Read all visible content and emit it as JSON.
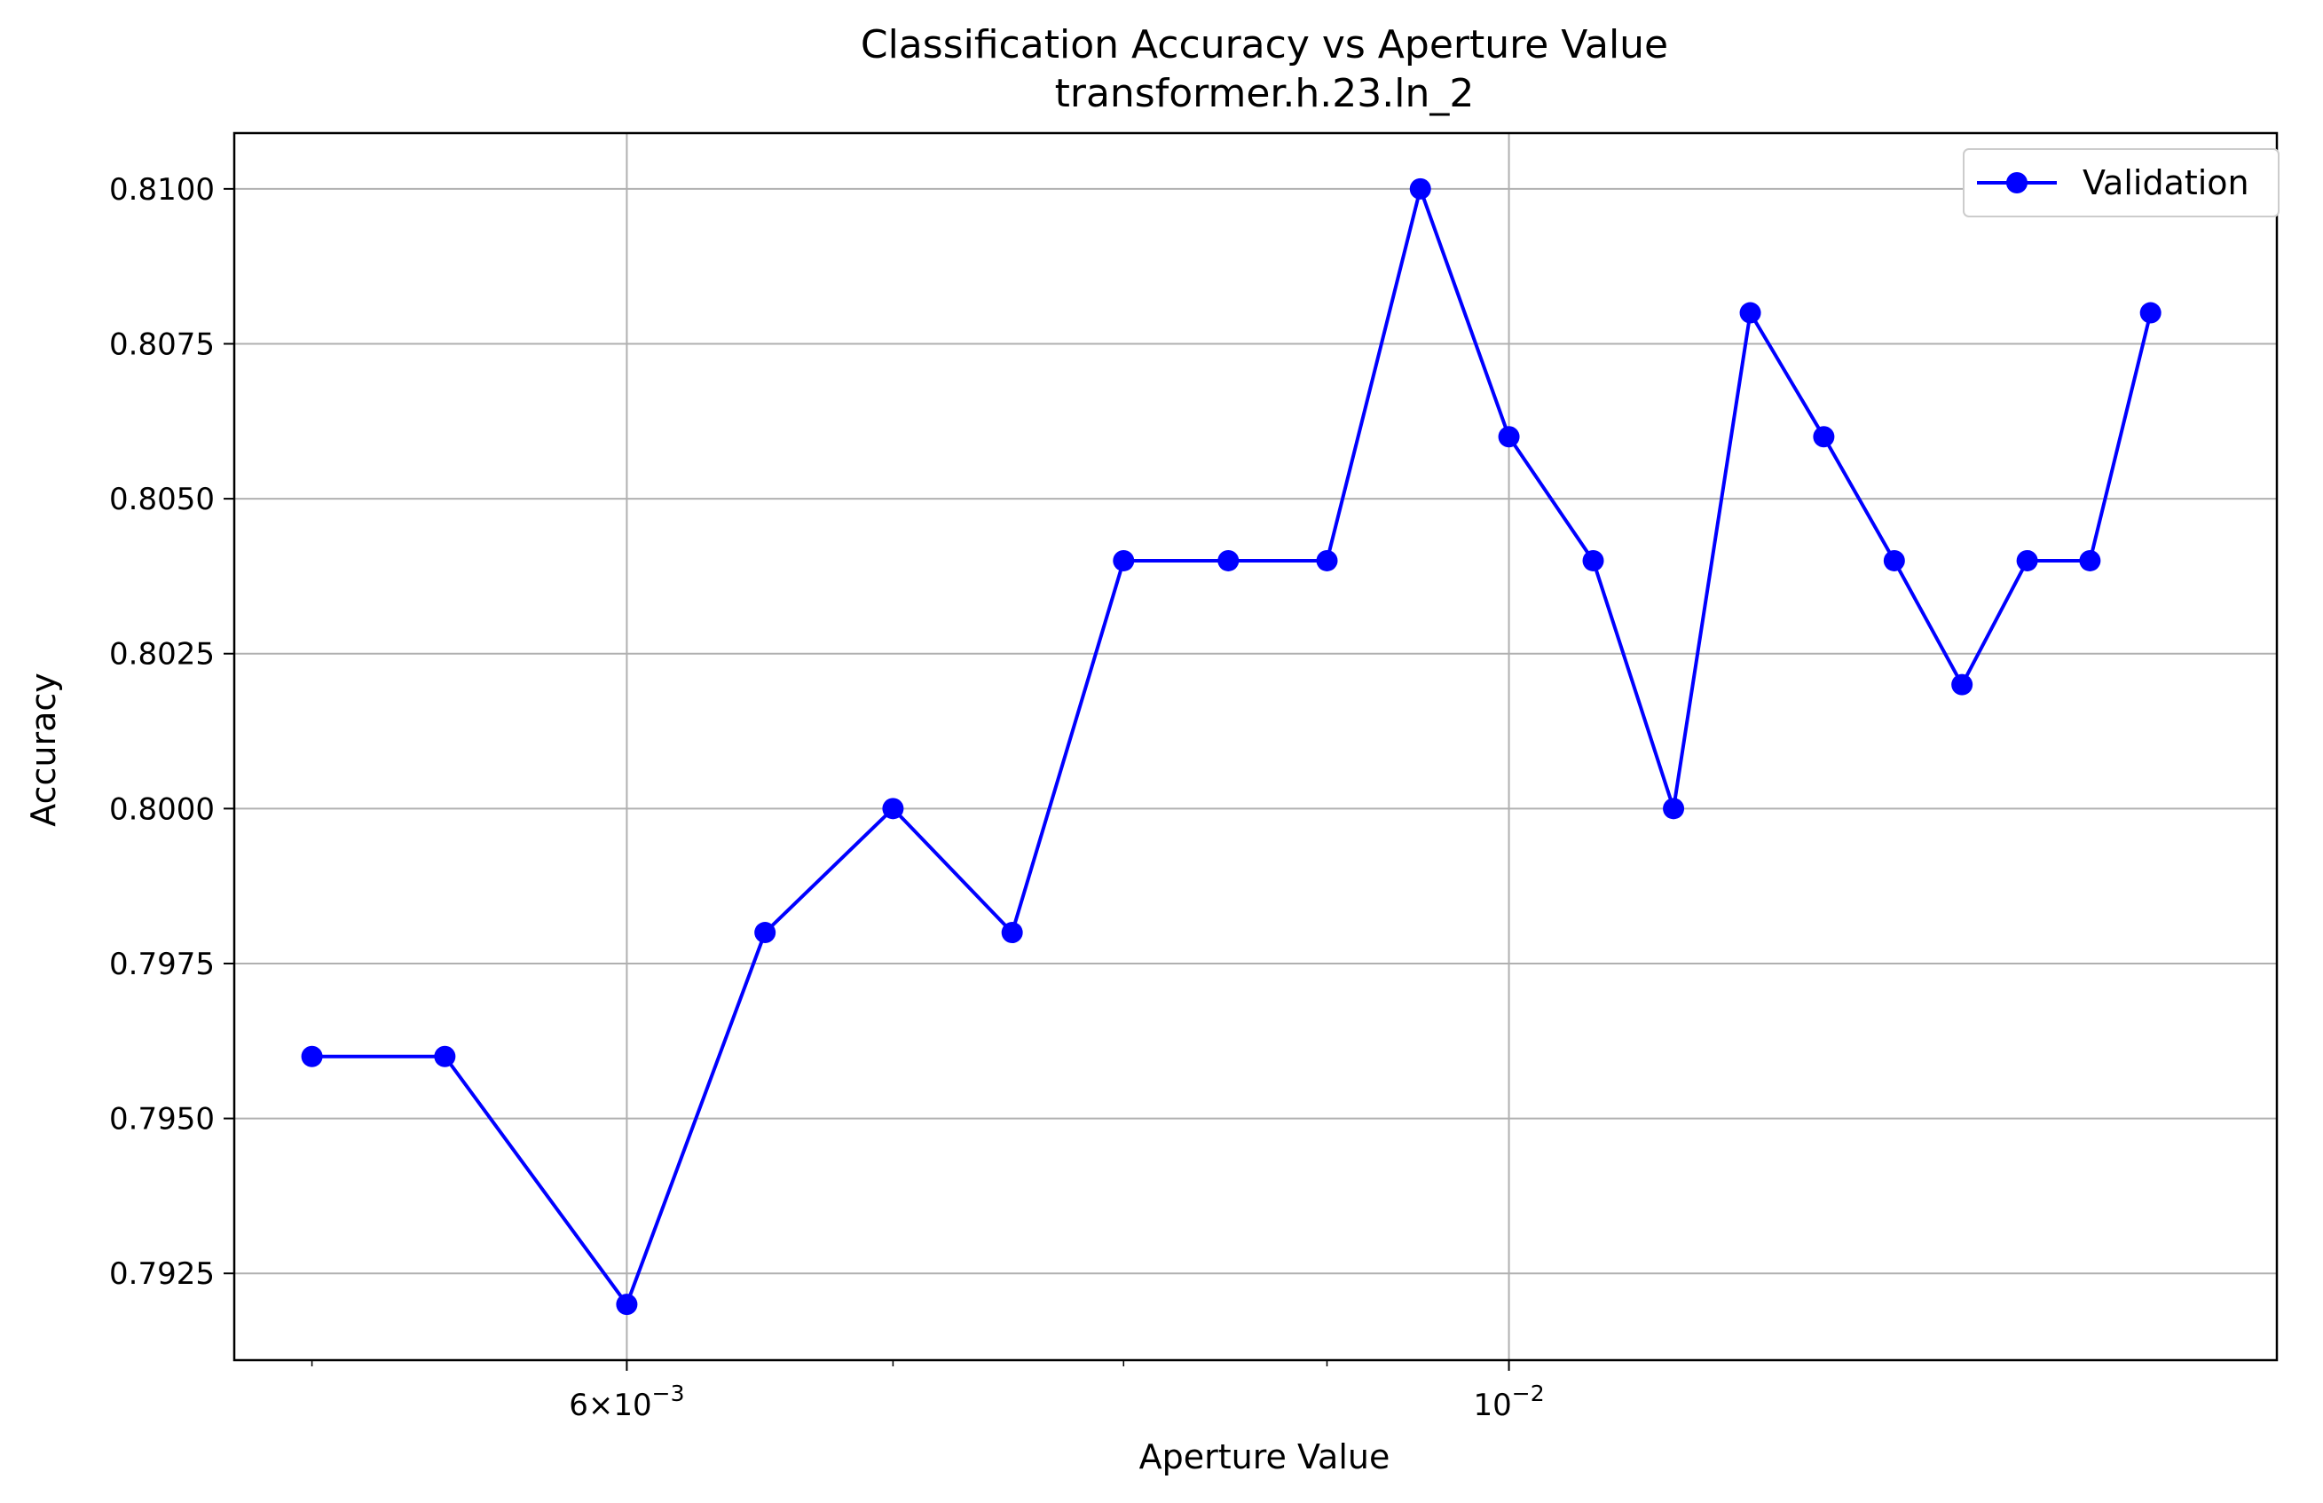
{
  "chart_data": {
    "type": "line",
    "title": "Classification Accuracy vs Aperture Value",
    "subtitle": "transformer.h.23.ln_2",
    "xlabel": "Aperture Value",
    "ylabel": "Accuracy",
    "xscale": "log",
    "xlim": [
      0.00478,
      0.0156
    ],
    "ylim": [
      0.7911,
      0.8109
    ],
    "grid": true,
    "legend_position": "upper-right",
    "x_major_ticks": [
      {
        "value": 0.006,
        "mantissa": "6",
        "base": "10",
        "exponent": "−3"
      },
      {
        "value": 0.01,
        "mantissa": "",
        "base": "10",
        "exponent": "−2"
      }
    ],
    "x_minor_ticks": [
      0.005,
      0.007,
      0.008,
      0.009
    ],
    "y_ticks": [
      {
        "value": 0.7925,
        "label": "0.7925"
      },
      {
        "value": 0.795,
        "label": "0.7950"
      },
      {
        "value": 0.7975,
        "label": "0.7975"
      },
      {
        "value": 0.8,
        "label": "0.8000"
      },
      {
        "value": 0.8025,
        "label": "0.8025"
      },
      {
        "value": 0.805,
        "label": "0.8050"
      },
      {
        "value": 0.8075,
        "label": "0.8075"
      },
      {
        "value": 0.81,
        "label": "0.8100"
      }
    ],
    "series": [
      {
        "name": "Validation",
        "color": "#0000ff",
        "marker": "circle",
        "x": [
          0.005,
          0.0054,
          0.006,
          0.0065,
          0.007,
          0.0075,
          0.008,
          0.0085,
          0.009,
          0.0095,
          0.01,
          0.0105,
          0.011,
          0.0115,
          0.012,
          0.0125,
          0.013,
          0.0135,
          0.014,
          0.0145
        ],
        "y": [
          0.796,
          0.796,
          0.792,
          0.798,
          0.8,
          0.798,
          0.804,
          0.804,
          0.804,
          0.81,
          0.806,
          0.804,
          0.8,
          0.808,
          0.806,
          0.804,
          0.802,
          0.804,
          0.804,
          0.808
        ]
      }
    ]
  }
}
